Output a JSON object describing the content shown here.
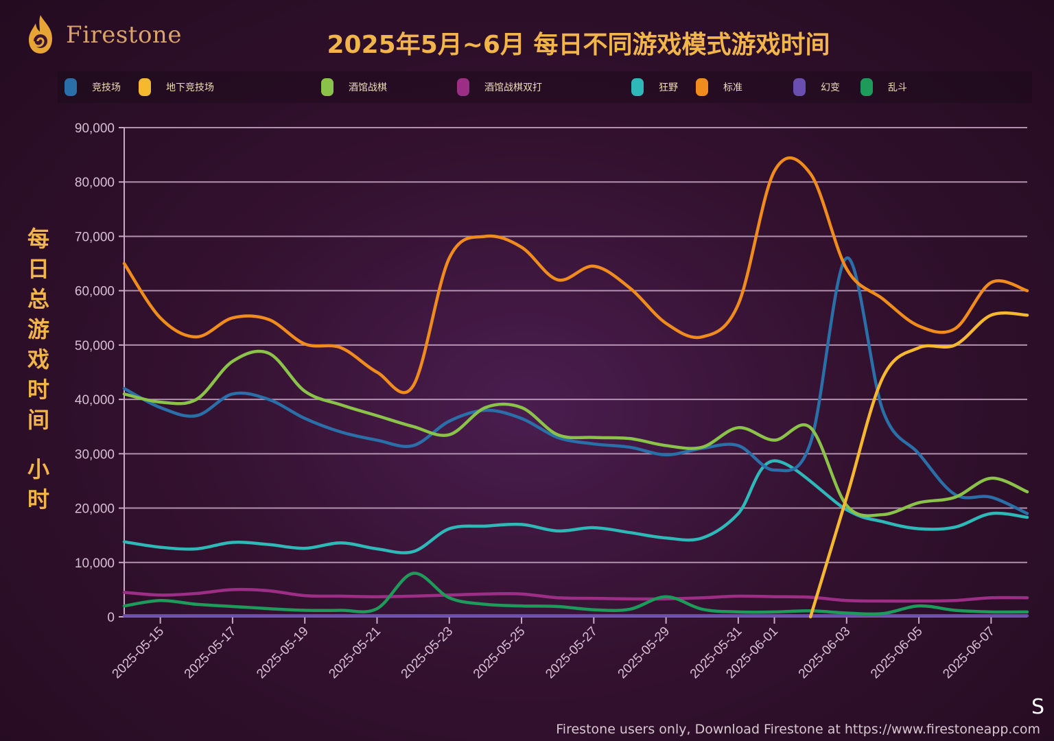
{
  "brand": {
    "name": "Firestone",
    "logo_icon": "flame-icon"
  },
  "title": "2025年5月~6月  每日不同游戏模式游戏时间",
  "ylabel_chars": [
    "每",
    "日",
    "总",
    "游",
    "戏",
    "时",
    "间"
  ],
  "ylabel_unit_chars": [
    "小",
    "时"
  ],
  "footer": "Firestone users only, Download Firestone at https://www.firestoneapp.com",
  "corner_text": "S",
  "chart_data": {
    "type": "line",
    "title": "2025年5月~6月  每日不同游戏模式游戏时间",
    "ylabel": "每日总游戏时间 小时",
    "xlabel": "",
    "ylim": [
      0,
      90000
    ],
    "yticks": [
      0,
      10000,
      20000,
      30000,
      40000,
      50000,
      60000,
      70000,
      80000,
      90000
    ],
    "ytick_labels": [
      "0",
      "10,000",
      "20,000",
      "30,000",
      "40,000",
      "50,000",
      "60,000",
      "70,000",
      "80,000",
      "90,000"
    ],
    "grid": true,
    "legend_position": "top",
    "x": [
      "2025-05-14",
      "2025-05-15",
      "2025-05-16",
      "2025-05-17",
      "2025-05-18",
      "2025-05-19",
      "2025-05-20",
      "2025-05-21",
      "2025-05-22",
      "2025-05-23",
      "2025-05-24",
      "2025-05-25",
      "2025-05-26",
      "2025-05-27",
      "2025-05-28",
      "2025-05-29",
      "2025-05-30",
      "2025-05-31",
      "2025-06-01",
      "2025-06-02",
      "2025-06-03",
      "2025-06-04",
      "2025-06-05",
      "2025-06-06",
      "2025-06-07",
      "2025-06-08"
    ],
    "xtick_labels": [
      "2025-05-15",
      "2025-05-17",
      "2025-05-19",
      "2025-05-21",
      "2025-05-23",
      "2025-05-25",
      "2025-05-27",
      "2025-05-29",
      "2025-05-31",
      "2025-06-01",
      "2025-06-03",
      "2025-06-05",
      "2025-06-07"
    ],
    "series": [
      {
        "name": "竞技场",
        "color": "#2a6fa8",
        "values": [
          42000,
          38500,
          37000,
          41000,
          40000,
          36500,
          34000,
          32500,
          31500,
          36000,
          38000,
          36500,
          33000,
          31800,
          31200,
          29800,
          31000,
          31500,
          27000,
          32000,
          66000,
          38000,
          30000,
          22500,
          22000,
          19000
        ]
      },
      {
        "name": "地下竞技场",
        "color": "#f5b82e",
        "values": [
          null,
          null,
          null,
          null,
          null,
          null,
          null,
          null,
          null,
          null,
          null,
          null,
          null,
          null,
          null,
          null,
          null,
          null,
          null,
          0,
          22000,
          44000,
          49500,
          50000,
          55500,
          55500
        ]
      },
      {
        "name": "酒馆战棋",
        "color": "#8bc34a",
        "values": [
          41000,
          39500,
          40000,
          47000,
          48500,
          41500,
          39000,
          37000,
          35000,
          33500,
          38500,
          38500,
          33500,
          33000,
          32800,
          31500,
          31200,
          34800,
          32500,
          34800,
          20500,
          18800,
          21000,
          22000,
          25500,
          23000
        ]
      },
      {
        "name": "酒馆战棋双打",
        "color": "#9c2f85",
        "values": [
          4500,
          4000,
          4300,
          5000,
          4800,
          3900,
          3800,
          3700,
          3800,
          4000,
          4200,
          4200,
          3500,
          3400,
          3300,
          3300,
          3500,
          3800,
          3700,
          3600,
          3000,
          2900,
          2900,
          3000,
          3500,
          3500
        ]
      },
      {
        "name": "狂野",
        "color": "#2fb8b8",
        "values": [
          13800,
          12800,
          12500,
          13700,
          13300,
          12600,
          13600,
          12500,
          12000,
          16200,
          16700,
          17000,
          15800,
          16400,
          15500,
          14500,
          14500,
          19000,
          28700,
          null,
          19700,
          17500,
          16200,
          16500,
          19000,
          18300
        ]
      },
      {
        "name": "标准",
        "color": "#f08c1e",
        "values": [
          65000,
          55000,
          51500,
          55000,
          54700,
          50200,
          49500,
          45000,
          42500,
          66000,
          70000,
          68000,
          62000,
          64500,
          60500,
          54000,
          51500,
          57500,
          82000,
          81500,
          64000,
          58500,
          53500,
          53000,
          61500,
          60000
        ]
      },
      {
        "name": "幻变",
        "color": "#6a4fb0",
        "values": [
          200,
          200,
          200,
          200,
          200,
          200,
          200,
          200,
          200,
          200,
          200,
          200,
          200,
          200,
          200,
          200,
          200,
          200,
          200,
          200,
          200,
          200,
          200,
          200,
          200,
          200
        ]
      },
      {
        "name": "乱斗",
        "color": "#1e9a5a",
        "values": [
          2000,
          3000,
          2300,
          1900,
          1500,
          1200,
          1200,
          1500,
          8000,
          3500,
          2300,
          2000,
          1900,
          1300,
          1400,
          3700,
          1400,
          900,
          900,
          1100,
          700,
          600,
          2000,
          1200,
          900,
          900
        ]
      }
    ]
  }
}
